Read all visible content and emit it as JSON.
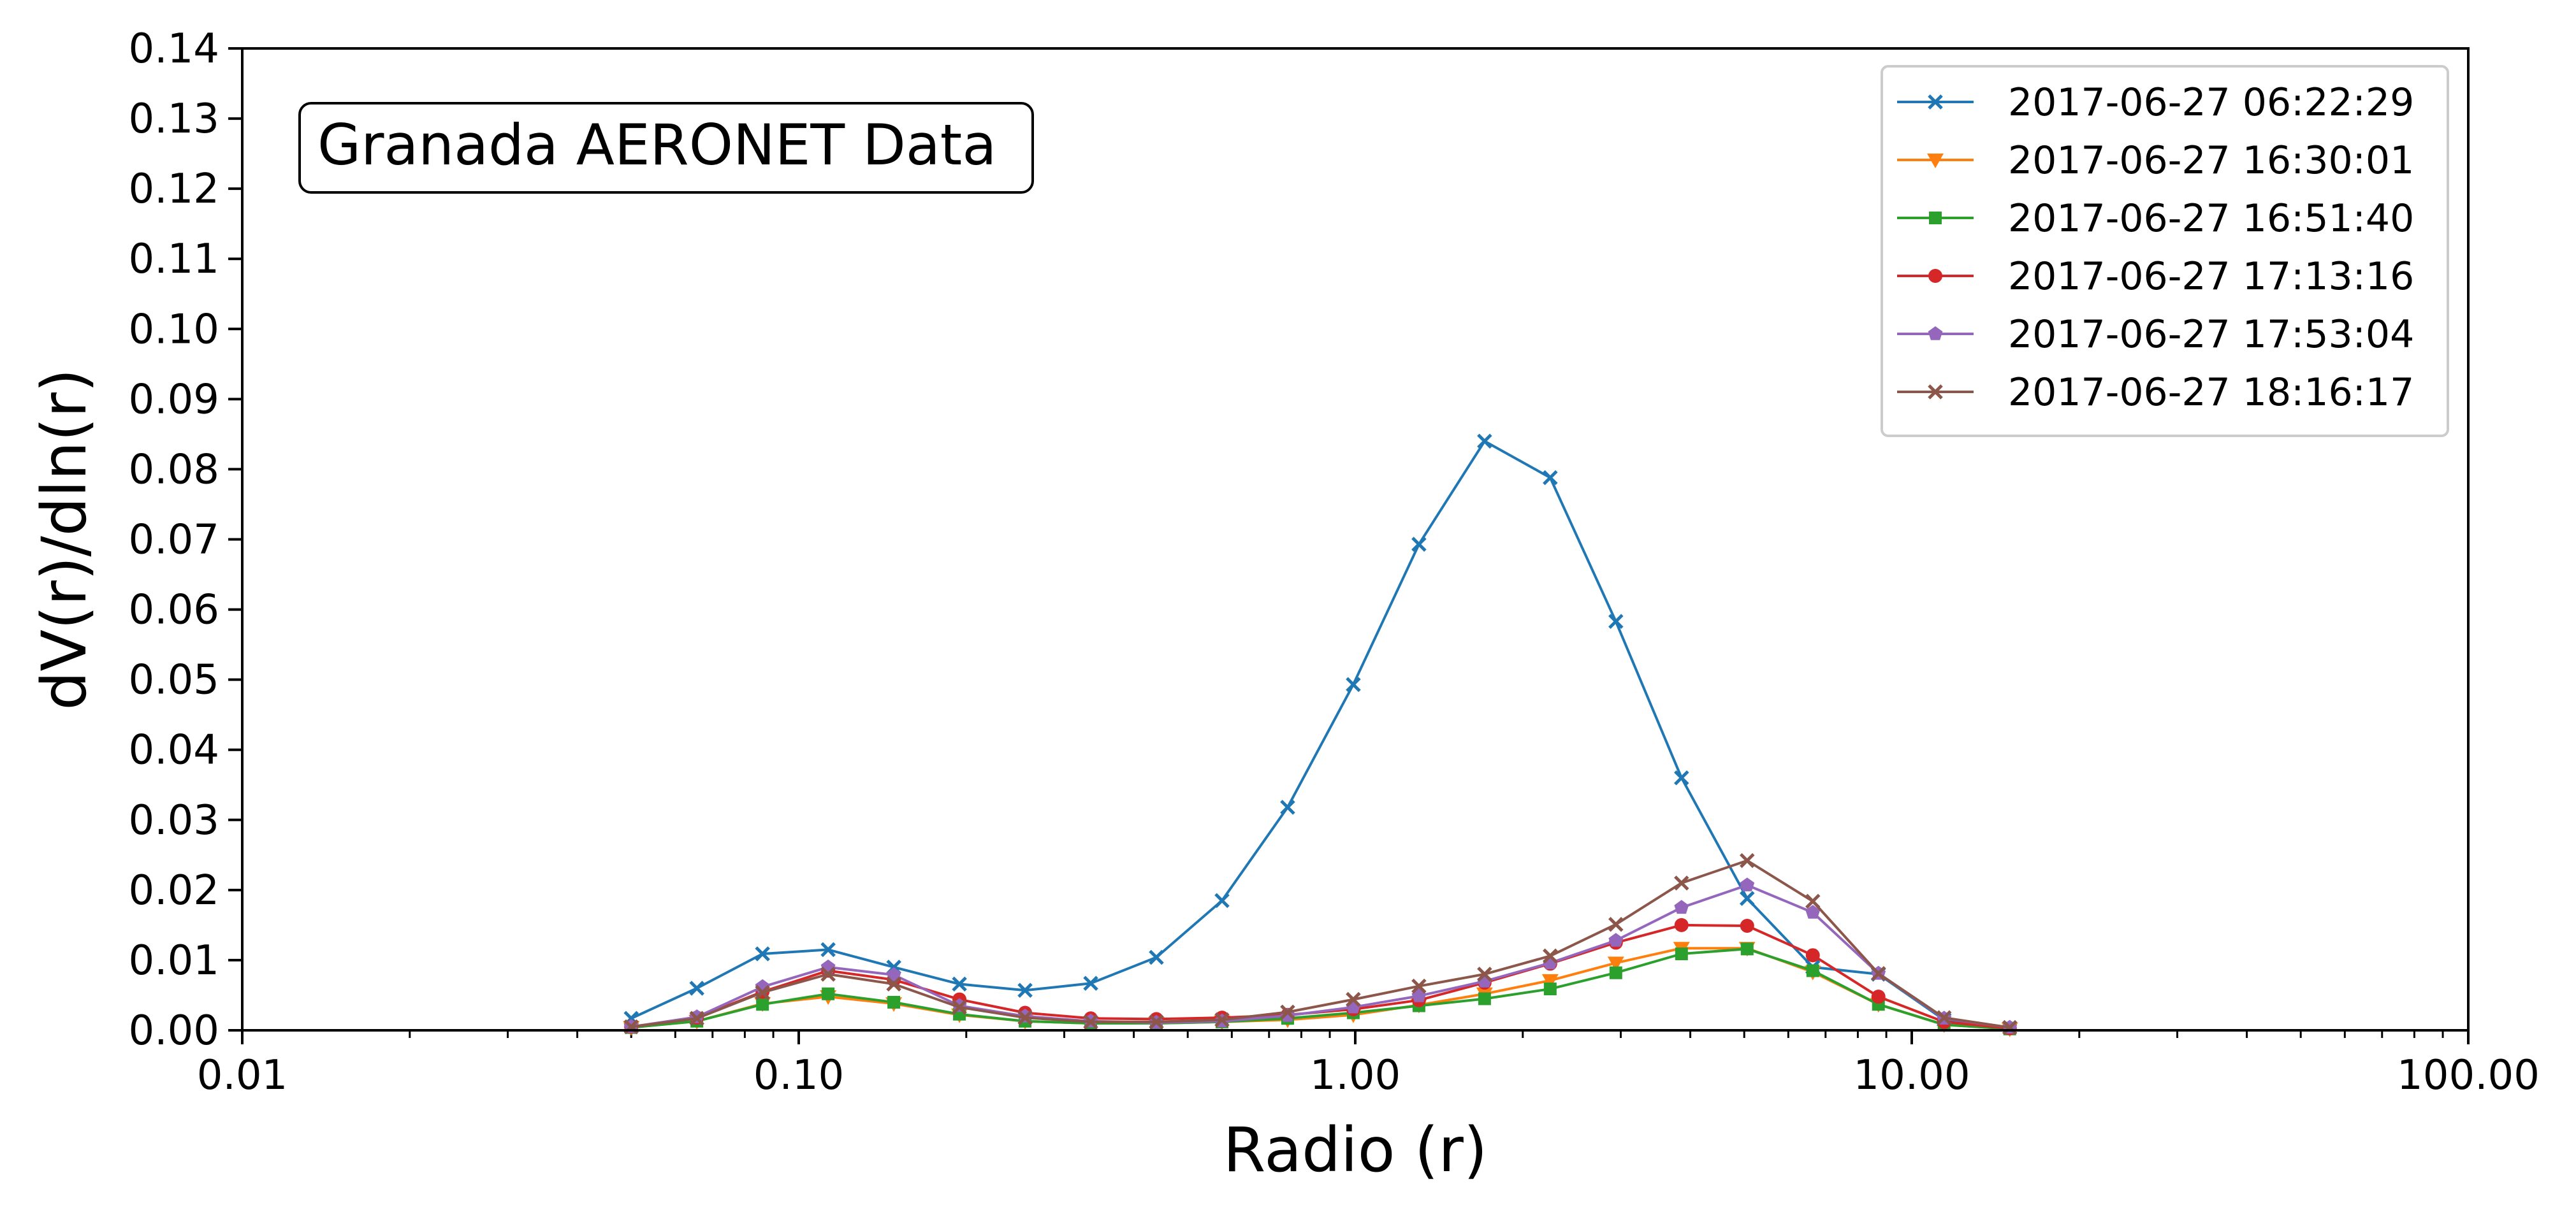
{
  "chart_data": {
    "type": "line",
    "annotation": "Granada AERONET Data",
    "xlabel": "Radio (r)",
    "ylabel": "dV(r)/dln(r)",
    "x_scale": "log",
    "xlim": [
      0.01,
      100
    ],
    "ylim": [
      0,
      0.14
    ],
    "x_ticks": [
      {
        "value": 0.01,
        "label": "0.01"
      },
      {
        "value": 0.1,
        "label": "0.10"
      },
      {
        "value": 1,
        "label": "1.00"
      },
      {
        "value": 10,
        "label": "10.00"
      },
      {
        "value": 100,
        "label": "100.00"
      }
    ],
    "y_ticks": [
      {
        "value": 0.0,
        "label": "0.00"
      },
      {
        "value": 0.01,
        "label": "0.01"
      },
      {
        "value": 0.02,
        "label": "0.02"
      },
      {
        "value": 0.03,
        "label": "0.03"
      },
      {
        "value": 0.04,
        "label": "0.04"
      },
      {
        "value": 0.05,
        "label": "0.05"
      },
      {
        "value": 0.06,
        "label": "0.06"
      },
      {
        "value": 0.07,
        "label": "0.07"
      },
      {
        "value": 0.08,
        "label": "0.08"
      },
      {
        "value": 0.09,
        "label": "0.09"
      },
      {
        "value": 0.1,
        "label": "0.10"
      },
      {
        "value": 0.11,
        "label": "0.11"
      },
      {
        "value": 0.12,
        "label": "0.12"
      },
      {
        "value": 0.13,
        "label": "0.13"
      },
      {
        "value": 0.14,
        "label": "0.14"
      }
    ],
    "grid": false,
    "legend_position": "top-right",
    "x": [
      0.05,
      0.065604,
      0.086077,
      0.11294,
      0.14818,
      0.19442,
      0.2551,
      0.33471,
      0.43915,
      0.57619,
      0.756,
      0.99192,
      1.30146,
      1.7076,
      2.24048,
      2.93964,
      3.85706,
      5.06069,
      6.64001,
      8.71213,
      11.431,
      15.0
    ],
    "series": [
      {
        "name": "2017-06-27 06:22:29",
        "color": "#1f77b4",
        "marker": "x",
        "values": [
          0.0017,
          0.006,
          0.0109,
          0.0115,
          0.009,
          0.0066,
          0.0057,
          0.0067,
          0.0104,
          0.0185,
          0.0318,
          0.0493,
          0.0693,
          0.084,
          0.0788,
          0.0583,
          0.036,
          0.0188,
          0.009,
          0.008,
          0.0015,
          0.0004
        ]
      },
      {
        "name": "2017-06-27 16:30:01",
        "color": "#ff7f0e",
        "marker": "triangle-down",
        "values": [
          0.0004,
          0.0013,
          0.0038,
          0.0048,
          0.0038,
          0.0022,
          0.0013,
          0.001,
          0.001,
          0.0012,
          0.0015,
          0.0022,
          0.0036,
          0.0052,
          0.0071,
          0.0096,
          0.0117,
          0.0117,
          0.0083,
          0.0037,
          0.0008,
          0.0002
        ]
      },
      {
        "name": "2017-06-27 16:51:40",
        "color": "#2ca02c",
        "marker": "square",
        "values": [
          0.0004,
          0.0013,
          0.0037,
          0.0052,
          0.004,
          0.0023,
          0.0013,
          0.001,
          0.001,
          0.0012,
          0.0017,
          0.0025,
          0.0035,
          0.0045,
          0.0059,
          0.0082,
          0.0109,
          0.0116,
          0.0085,
          0.0037,
          0.0008,
          0.0002
        ]
      },
      {
        "name": "2017-06-27 17:13:16",
        "color": "#d62728",
        "marker": "circle",
        "values": [
          0.0005,
          0.0018,
          0.0055,
          0.0085,
          0.0072,
          0.0044,
          0.0025,
          0.0017,
          0.0016,
          0.0018,
          0.0022,
          0.003,
          0.0043,
          0.0068,
          0.0095,
          0.0125,
          0.015,
          0.0149,
          0.0107,
          0.0048,
          0.0012,
          0.0003
        ]
      },
      {
        "name": "2017-06-27 17:53:04",
        "color": "#9467bd",
        "marker": "pentagon",
        "values": [
          0.0005,
          0.0019,
          0.0062,
          0.009,
          0.0079,
          0.0035,
          0.002,
          0.0013,
          0.0011,
          0.0013,
          0.0021,
          0.0033,
          0.0049,
          0.007,
          0.0096,
          0.0128,
          0.0175,
          0.0207,
          0.0168,
          0.0081,
          0.0017,
          0.0004
        ]
      },
      {
        "name": "2017-06-27 18:16:17",
        "color": "#8c564b",
        "marker": "x",
        "values": [
          0.0005,
          0.0017,
          0.0054,
          0.008,
          0.0066,
          0.0033,
          0.0018,
          0.0012,
          0.0012,
          0.0015,
          0.0026,
          0.0044,
          0.0063,
          0.008,
          0.0106,
          0.0151,
          0.021,
          0.0242,
          0.0184,
          0.0081,
          0.0018,
          0.0004
        ]
      }
    ]
  }
}
